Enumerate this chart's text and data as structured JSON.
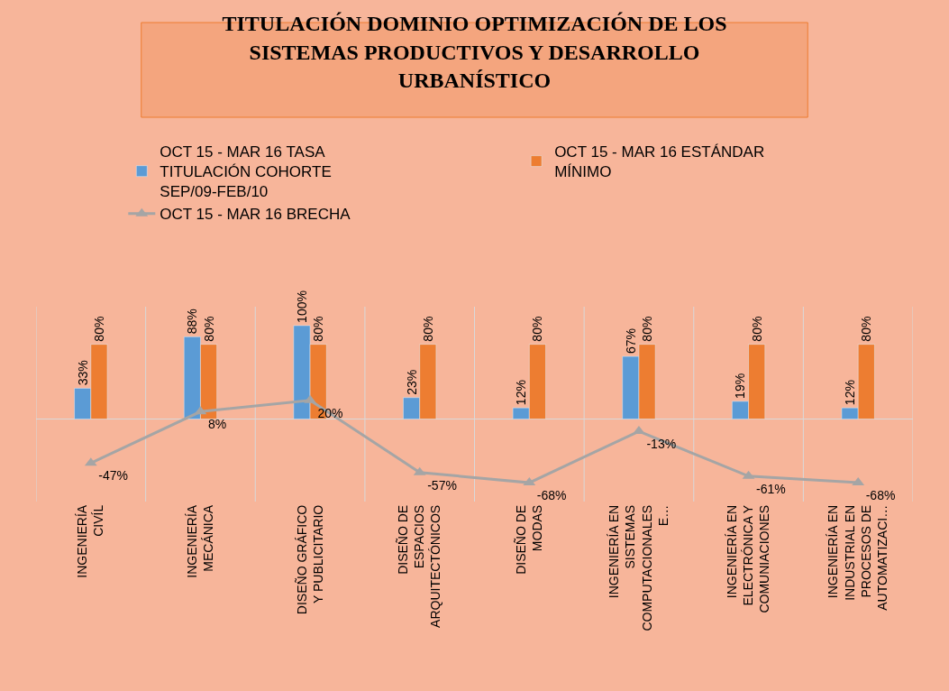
{
  "chart_data": {
    "type": "bar",
    "title": "TITULACIÓN DOMINIO OPTIMIZACIÓN DE LOS SISTEMAS PRODUCTIVOS Y DESARROLLO URBANÍSTICO",
    "categories": [
      "INGENIERÍA CIVÍL",
      "INGENIERÍA MECÁNICA",
      "DISEÑO GRÁFICO Y PUBLICITARIO",
      "DISEÑO DE ESPACIOS ARQUITECTÓNICOS",
      "DISEÑO DE MODAS",
      "INGENIERÍA EN SISTEMAS COMPUTACIONALES E…",
      "INGENIERÍA EN ELECTRÓNICA Y COMUNIACIONES",
      "INGENIERÍA EN INDUSTRIAL EN PROCESOS DE AUTOMATIZACI…"
    ],
    "series": [
      {
        "name": "OCT 15 - MAR 16 TASA TITULACIÓN COHORTE SEP/09-FEB/10",
        "color": "#5b9bd5",
        "values": [
          33,
          88,
          100,
          23,
          12,
          67,
          19,
          12
        ],
        "value_labels": [
          "33%",
          "88%",
          "100%",
          "23%",
          "12%",
          "67%",
          "19%",
          "12%"
        ]
      },
      {
        "name": "OCT 15 - MAR 16 ESTÁNDAR MÍNIMO",
        "color": "#ed7d31",
        "values": [
          80,
          80,
          80,
          80,
          80,
          80,
          80,
          80
        ],
        "value_labels": [
          "80%",
          "80%",
          "80%",
          "80%",
          "80%",
          "80%",
          "80%",
          "80%"
        ]
      },
      {
        "name": "OCT 15 - MAR 16 BRECHA",
        "type": "line",
        "color": "#a5a5a5",
        "marker": "triangle",
        "values": [
          -47,
          8,
          20,
          -57,
          -68,
          -13,
          -61,
          -68
        ],
        "value_labels": [
          "-47%",
          "8%",
          "20%",
          "-57%",
          "-68%",
          "-13%",
          "-61%",
          "-68%"
        ]
      }
    ],
    "legend": "top",
    "tick_labels": "x"
  }
}
